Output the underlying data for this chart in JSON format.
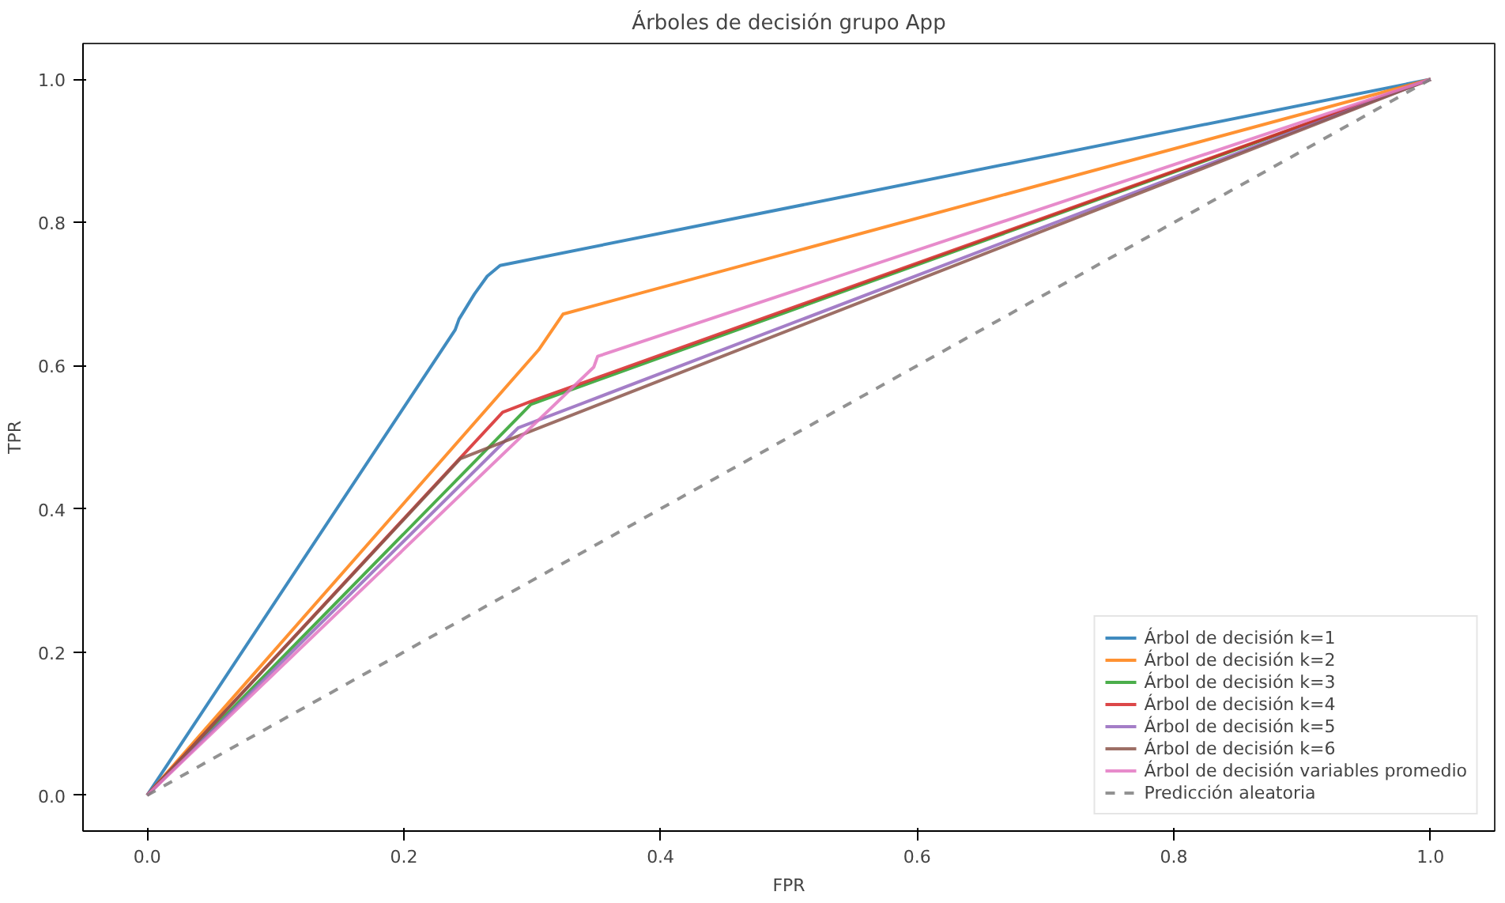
{
  "chart_data": {
    "type": "line",
    "title": "Árboles de decisión grupo App",
    "xlabel": "FPR",
    "ylabel": "TPR",
    "xlim": [
      -0.05,
      1.05
    ],
    "ylim": [
      -0.05,
      1.05
    ],
    "xticks": [
      {
        "value": 0,
        "label": "0.0"
      },
      0.2,
      0.4,
      0.6,
      0.8,
      {
        "value": 1,
        "label": "1.0"
      }
    ],
    "yticks": [
      {
        "value": 0,
        "label": "0.0"
      },
      0.2,
      0.4,
      0.6,
      0.8,
      {
        "value": 1,
        "label": "1.0"
      }
    ],
    "grid": false,
    "legend": "bottom right",
    "marker": "none",
    "series": [
      {
        "name": "Árbol de decisión k=1",
        "color": "#1f77b4",
        "x": [
          0,
          0.24,
          0.243,
          0.255,
          0.265,
          0.275,
          1
        ],
        "values": [
          0,
          0.65,
          0.665,
          0.7,
          0.725,
          0.74,
          1
        ]
      },
      {
        "name": "Árbol de decisión k=2",
        "color": "#ff7f0e",
        "x": [
          0,
          0.305,
          0.324,
          1
        ],
        "values": [
          0,
          0.622,
          0.672,
          1
        ]
      },
      {
        "name": "Árbol de decisión k=3",
        "color": "#2ca02c",
        "x": [
          0,
          0.299,
          1
        ],
        "values": [
          0,
          0.546,
          1
        ]
      },
      {
        "name": "Árbol de decisión k=4",
        "color": "#d62728",
        "x": [
          0,
          0.277,
          0.299,
          1
        ],
        "values": [
          0,
          0.535,
          0.55,
          1
        ]
      },
      {
        "name": "Árbol de decisión k=5",
        "color": "#9467bd",
        "x": [
          0,
          0.289,
          1
        ],
        "values": [
          0,
          0.513,
          1
        ]
      },
      {
        "name": "Árbol de decisión k=6",
        "color": "#8c564b",
        "x": [
          0,
          0.244,
          1
        ],
        "values": [
          0,
          0.47,
          1
        ]
      },
      {
        "name": "Árbol de decisión variables promedio",
        "color": "#e377c2",
        "x": [
          0,
          0.348,
          0.351,
          1
        ],
        "values": [
          0,
          0.598,
          0.613,
          1
        ]
      },
      {
        "name": "Predicción aleatoria",
        "color": "#7f7f7f",
        "line_style": "dashed",
        "x": [
          0,
          1
        ],
        "values": [
          0,
          1
        ]
      }
    ]
  }
}
